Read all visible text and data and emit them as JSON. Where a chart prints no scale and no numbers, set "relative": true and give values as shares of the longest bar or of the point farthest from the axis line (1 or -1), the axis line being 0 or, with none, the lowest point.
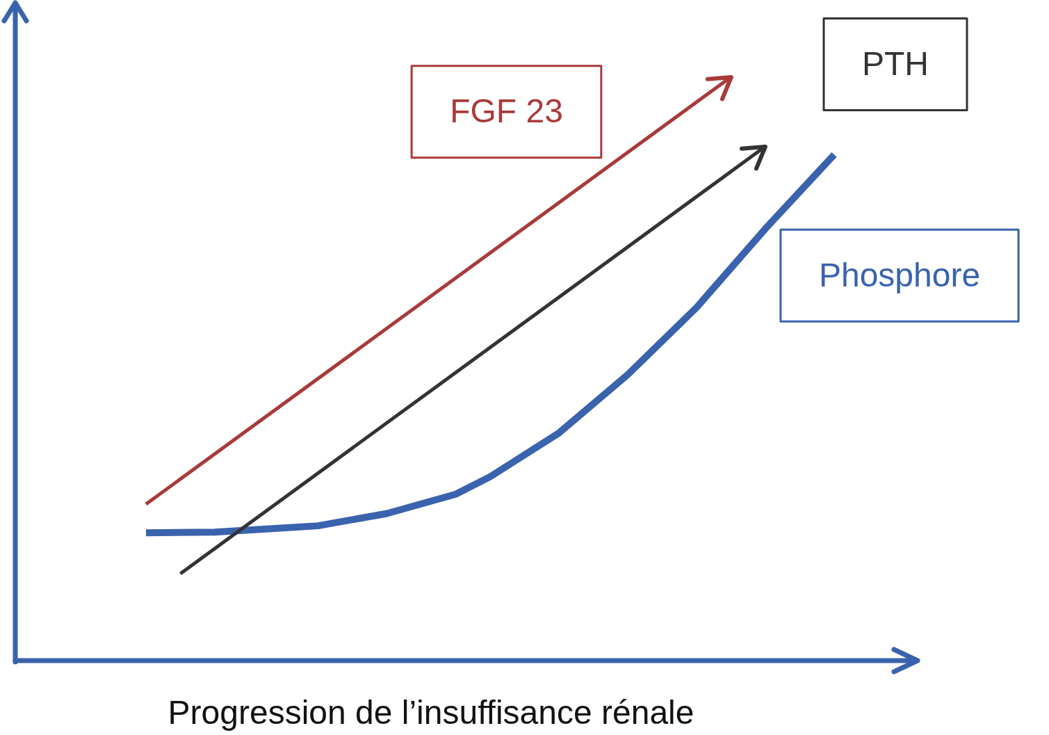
{
  "chart_data": {
    "type": "line",
    "relative": true,
    "xlabel": "Progression de l’insuffisance rénale",
    "legend": false,
    "marker": "none",
    "categories": [
      null,
      null,
      null,
      null,
      null,
      null,
      null,
      null,
      null,
      null,
      null,
      null,
      null,
      null,
      null,
      null,
      null,
      null,
      null,
      null,
      null
    ],
    "series": [
      {
        "name": "FGF 23",
        "color": "#a93a3a",
        "values": [
          0.268,
          null,
          null,
          null,
          null,
          null,
          null,
          null,
          null,
          null,
          null,
          null,
          null,
          null,
          null,
          null,
          null,
          1.0,
          null,
          null,
          null
        ]
      },
      {
        "name": "PTH",
        "color": "#333333",
        "values": [
          null,
          0.149,
          null,
          null,
          null,
          null,
          null,
          null,
          null,
          null,
          null,
          null,
          null,
          null,
          null,
          null,
          null,
          null,
          0.881,
          null,
          null
        ]
      },
      {
        "name": "Phosphore",
        "color": "#3a63ad",
        "values": [
          0.219,
          null,
          0.22,
          null,
          null,
          0.231,
          null,
          0.252,
          null,
          0.285,
          0.315,
          null,
          0.39,
          null,
          0.49,
          null,
          0.605,
          null,
          0.74,
          null,
          0.867
        ]
      }
    ]
  }
}
